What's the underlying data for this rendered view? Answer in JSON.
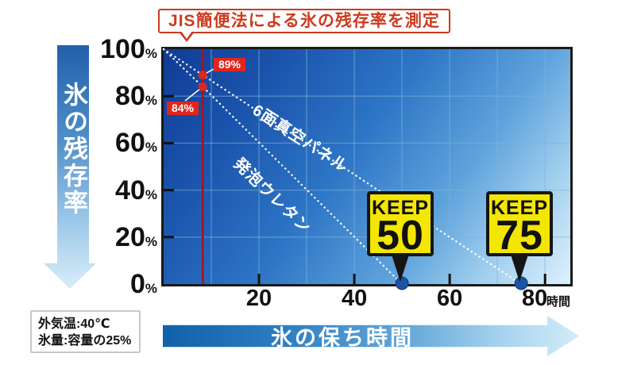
{
  "title": {
    "text": "JIS簡便法による氷の残存率を測定"
  },
  "y_axis": {
    "title": "氷の残存率",
    "unit": "%"
  },
  "x_axis": {
    "unit": "時間",
    "arrow_label": "氷の保ち時間"
  },
  "conditions": {
    "line1": "外気温:40℃",
    "line2": "氷量:容量の25%"
  },
  "chart_data": {
    "type": "line",
    "title": "JIS簡便法による氷の残存率を測定",
    "xlabel": "氷の保ち時間 (時間)",
    "ylabel": "氷の残存率 (%)",
    "xlim": [
      0,
      85.3
    ],
    "ylim": [
      0,
      100
    ],
    "xticks": [
      20,
      40,
      60,
      80
    ],
    "xtick_labels": [
      "20",
      "40",
      "60",
      "80"
    ],
    "yticks": [
      100,
      80,
      60,
      40,
      20,
      0
    ],
    "ytick_labels": [
      "100",
      "80",
      "60",
      "40",
      "20",
      "0"
    ],
    "grid": {
      "x": [
        10,
        20,
        30,
        40,
        50,
        60,
        70,
        80
      ],
      "y": [
        20,
        40,
        60,
        80
      ]
    },
    "series": [
      {
        "name": "6面真空パネル",
        "points": [
          [
            0,
            100
          ],
          [
            8.2,
            89
          ],
          [
            75,
            0
          ]
        ],
        "keep_badge": {
          "line1": "KEEP",
          "line2": "75"
        }
      },
      {
        "name": "発泡ウレタン",
        "points": [
          [
            0,
            100
          ],
          [
            8.2,
            84
          ],
          [
            50,
            0
          ]
        ],
        "keep_badge": {
          "line1": "KEEP",
          "line2": "50"
        }
      }
    ],
    "measurement": {
      "time": 8.2,
      "readings": [
        {
          "series": "6面真空パネル",
          "label": "89%",
          "value": 89
        },
        {
          "series": "発泡ウレタン",
          "label": "84%",
          "value": 84
        }
      ]
    },
    "colors": {
      "series_line": "#ffffff",
      "measurement_line": "#a41325",
      "annotation_red": "#e2251c",
      "accent_red": "#cd3a1e",
      "keep_badge_yellow": "#f3e600",
      "end_dot_blue": "#1c52a4",
      "grid": "#7fb2dd",
      "axis": "#111111"
    }
  }
}
